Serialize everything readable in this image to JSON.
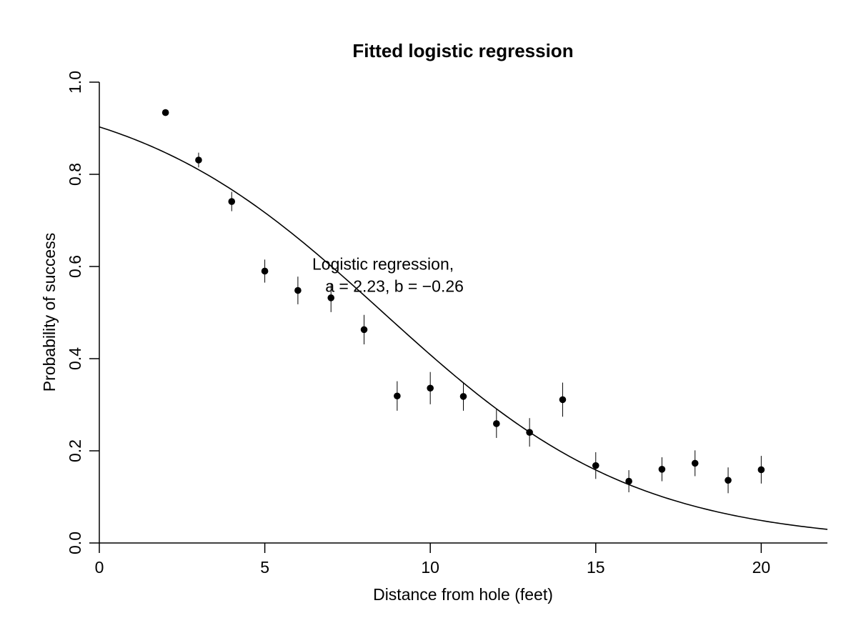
{
  "chart_data": {
    "type": "scatter",
    "title": "Fitted logistic regression",
    "xlabel": "Distance from hole (feet)",
    "ylabel": "Probability of success",
    "xlim": [
      0,
      22
    ],
    "ylim": [
      0,
      1.0
    ],
    "x_ticks": [
      "0",
      "5",
      "10",
      "15",
      "20"
    ],
    "y_ticks": [
      "0.0",
      "0.2",
      "0.4",
      "0.6",
      "0.8",
      "1.0"
    ],
    "grid": false,
    "points": [
      {
        "x": 2,
        "y": 0.934,
        "lo": 0.927,
        "hi": 0.941
      },
      {
        "x": 3,
        "y": 0.831,
        "lo": 0.815,
        "hi": 0.847
      },
      {
        "x": 4,
        "y": 0.741,
        "lo": 0.72,
        "hi": 0.762
      },
      {
        "x": 5,
        "y": 0.59,
        "lo": 0.565,
        "hi": 0.615
      },
      {
        "x": 6,
        "y": 0.548,
        "lo": 0.518,
        "hi": 0.578
      },
      {
        "x": 7,
        "y": 0.532,
        "lo": 0.501,
        "hi": 0.563
      },
      {
        "x": 8,
        "y": 0.463,
        "lo": 0.431,
        "hi": 0.495
      },
      {
        "x": 9,
        "y": 0.319,
        "lo": 0.287,
        "hi": 0.351
      },
      {
        "x": 10,
        "y": 0.336,
        "lo": 0.301,
        "hi": 0.371
      },
      {
        "x": 11,
        "y": 0.318,
        "lo": 0.287,
        "hi": 0.349
      },
      {
        "x": 12,
        "y": 0.259,
        "lo": 0.228,
        "hi": 0.29
      },
      {
        "x": 13,
        "y": 0.24,
        "lo": 0.209,
        "hi": 0.271
      },
      {
        "x": 14,
        "y": 0.311,
        "lo": 0.274,
        "hi": 0.348
      },
      {
        "x": 15,
        "y": 0.168,
        "lo": 0.139,
        "hi": 0.197
      },
      {
        "x": 16,
        "y": 0.134,
        "lo": 0.11,
        "hi": 0.158
      },
      {
        "x": 17,
        "y": 0.16,
        "lo": 0.134,
        "hi": 0.186
      },
      {
        "x": 18,
        "y": 0.173,
        "lo": 0.145,
        "hi": 0.201
      },
      {
        "x": 19,
        "y": 0.136,
        "lo": 0.108,
        "hi": 0.164
      },
      {
        "x": 20,
        "y": 0.159,
        "lo": 0.129,
        "hi": 0.189
      }
    ],
    "curve": {
      "type": "logistic",
      "a": 2.23,
      "b": -0.26
    },
    "annotation": {
      "line1": "Logistic regression,",
      "line2": "a = 2.23, b = −0.26",
      "x": 8.4,
      "y": 0.59
    }
  }
}
